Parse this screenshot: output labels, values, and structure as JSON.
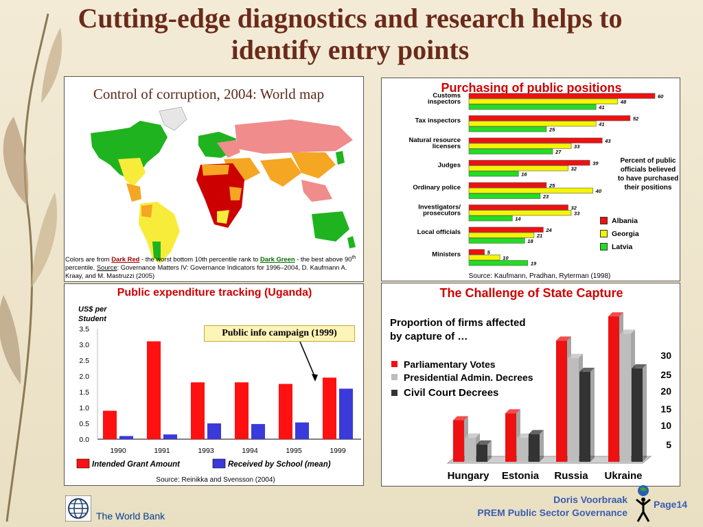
{
  "slide": {
    "title": "Cutting-edge diagnostics and research helps to identify entry points",
    "footer_org": "The World Bank",
    "footer_author": "Doris Voorbraak",
    "footer_unit": "PREM Public Sector Governance",
    "page": "Page14"
  },
  "map_panel": {
    "title": "Control of corruption, 2004: World map",
    "caption_1": "Colors are from ",
    "caption_dark_red": "Dark Red",
    "caption_2": " - the worst bottom 10th percentile rank to ",
    "caption_dark_green": "Dark Green",
    "caption_3": " - the best above 90",
    "caption_sup": "th",
    "caption_4": " percentile.  ",
    "caption_source_label": "Source",
    "caption_5": ":  Governance Matters IV: Governance Indicators for 1996–2004, D. Kaufmann A. Kraay, and M. Mastruzzi (2005)",
    "colors": {
      "red": "#cc0000",
      "pink": "#f08c8c",
      "orange": "#f5a623",
      "yellow": "#f8ec3a",
      "light_green": "#9be05a",
      "green": "#1fb31f"
    }
  },
  "purchasing_panel": {
    "title": "Purchasing of public positions",
    "note": "Percent of public officials believed to have purchased their positions",
    "source": "Source: Kaufmann, Pradhan, Ryterman (1998)"
  },
  "pet_panel": {
    "title": "Public expenditure tracking (Uganda)",
    "ylabel_1": "US$ per",
    "ylabel_2": "Student",
    "campaign": "Public info campaign (1999)",
    "source": "Source: Reinikka and Svensson (2004)"
  },
  "capture_panel": {
    "title": "The Challenge of State Capture",
    "proportion": "Proportion of  firms affected by capture of …"
  },
  "chart_data": [
    {
      "type": "bar",
      "orientation": "horizontal",
      "title": "Purchasing of public positions",
      "categories": [
        "Customs inspectors",
        "Tax inspectors",
        "Natural resource licensers",
        "Judges",
        "Ordinary police",
        "Investigators/ prosecutors",
        "Local officials",
        "Ministers"
      ],
      "series": [
        {
          "name": "Albania",
          "color": "#ee1111",
          "values": [
            60,
            52,
            43,
            39,
            25,
            32,
            24,
            5
          ]
        },
        {
          "name": "Georgia",
          "color": "#f5f500",
          "values": [
            48,
            41,
            33,
            32,
            40,
            33,
            21,
            10
          ]
        },
        {
          "name": "Latvia",
          "color": "#22dd22",
          "values": [
            41,
            25,
            27,
            16,
            23,
            14,
            18,
            19
          ]
        }
      ],
      "xlim": [
        0,
        60
      ],
      "legend": "right"
    },
    {
      "type": "bar",
      "title": "Public expenditure tracking (Uganda)",
      "ylabel": "US$ per Student",
      "categories": [
        "1990",
        "1991",
        "1993",
        "1994",
        "1995",
        "1999"
      ],
      "series": [
        {
          "name": "Intended Grant Amount",
          "color": "#ff1111",
          "values": [
            0.9,
            3.1,
            1.8,
            1.8,
            1.75,
            1.95
          ]
        },
        {
          "name": "Received by School (mean)",
          "color": "#3a3adb",
          "values": [
            0.1,
            0.15,
            0.5,
            0.48,
            0.53,
            1.6
          ]
        }
      ],
      "yticks": [
        "0.0",
        "0.5",
        "1.0",
        "1.5",
        "2.0",
        "2.5",
        "3.0",
        "3.5"
      ],
      "ylim": [
        0,
        3.5
      ],
      "legend": "bottom"
    },
    {
      "type": "bar",
      "title": "The Challenge of State Capture",
      "categories": [
        "Hungary",
        "Estonia",
        "Russia",
        "Ukraine"
      ],
      "series": [
        {
          "name": "Parliamentary Votes",
          "color": "#ee1111",
          "values": [
            12,
            14,
            35,
            42
          ]
        },
        {
          "name": "Presidential Admin. Decrees",
          "color": "#bdbdbd",
          "values": [
            7,
            7,
            30,
            37
          ]
        },
        {
          "name": "Civil Court Decrees",
          "color": "#333333",
          "values": [
            5,
            8,
            26,
            27
          ]
        }
      ],
      "yticks": [
        "30",
        "25",
        "20",
        "15",
        "10",
        "5"
      ],
      "legend": "left"
    }
  ]
}
